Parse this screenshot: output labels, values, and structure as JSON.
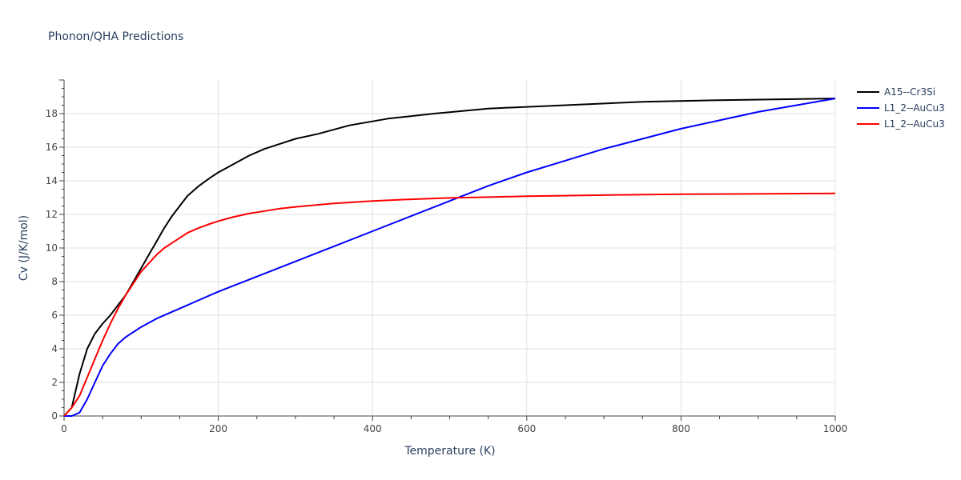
{
  "chart_data": {
    "type": "line",
    "title": "Phonon/QHA Predictions",
    "xlabel": "Temperature (K)",
    "ylabel": "Cv (J/K/mol)",
    "xlim": [
      0,
      1000
    ],
    "ylim": [
      0,
      20
    ],
    "xticks": [
      0,
      200,
      400,
      600,
      800,
      1000
    ],
    "yticks": [
      0,
      2,
      4,
      6,
      8,
      10,
      12,
      14,
      16,
      18
    ],
    "grid": true,
    "legend_position": "top-right",
    "series": [
      {
        "name": "A15--Cr3Si",
        "color": "#000000",
        "x": [
          0,
          10,
          20,
          30,
          40,
          50,
          60,
          70,
          80,
          90,
          100,
          110,
          120,
          130,
          140,
          150,
          160,
          175,
          190,
          200,
          220,
          240,
          260,
          280,
          300,
          330,
          370,
          420,
          480,
          550,
          650,
          750,
          850,
          1000
        ],
        "y": [
          0,
          0.5,
          2.5,
          4.0,
          4.9,
          5.5,
          6.0,
          6.6,
          7.2,
          8.0,
          8.8,
          9.6,
          10.4,
          11.2,
          11.9,
          12.5,
          13.1,
          13.7,
          14.2,
          14.5,
          15.0,
          15.5,
          15.9,
          16.2,
          16.5,
          16.8,
          17.3,
          17.7,
          18.0,
          18.3,
          18.5,
          18.7,
          18.8,
          18.9
        ]
      },
      {
        "name": "L1_2--AuCu3",
        "color": "#0000ff",
        "x": [
          0,
          10,
          20,
          30,
          40,
          50,
          60,
          70,
          80,
          90,
          100,
          120,
          140,
          160,
          180,
          200,
          250,
          300,
          350,
          400,
          450,
          500,
          550,
          600,
          650,
          700,
          750,
          800,
          850,
          900,
          950,
          1000
        ],
        "y": [
          0,
          0,
          0.2,
          1.0,
          2.0,
          3.0,
          3.7,
          4.3,
          4.7,
          5.0,
          5.3,
          5.8,
          6.2,
          6.6,
          7.0,
          7.4,
          8.3,
          9.2,
          10.1,
          11.0,
          11.9,
          12.8,
          13.7,
          14.5,
          15.2,
          15.9,
          16.5,
          17.1,
          17.6,
          18.1,
          18.5,
          18.9
        ]
      },
      {
        "name": "L1_2--AuCu3",
        "color": "#ff0000",
        "x": [
          0,
          10,
          20,
          30,
          40,
          50,
          60,
          70,
          80,
          90,
          100,
          110,
          120,
          130,
          140,
          150,
          160,
          175,
          190,
          200,
          220,
          240,
          260,
          280,
          300,
          350,
          400,
          450,
          500,
          550,
          600,
          700,
          800,
          1000
        ],
        "y": [
          0,
          0.5,
          1.2,
          2.3,
          3.4,
          4.5,
          5.5,
          6.4,
          7.2,
          7.9,
          8.6,
          9.1,
          9.6,
          10.0,
          10.3,
          10.6,
          10.9,
          11.2,
          11.45,
          11.6,
          11.85,
          12.05,
          12.2,
          12.35,
          12.45,
          12.65,
          12.8,
          12.9,
          12.98,
          13.03,
          13.08,
          13.15,
          13.2,
          13.25
        ]
      }
    ]
  }
}
